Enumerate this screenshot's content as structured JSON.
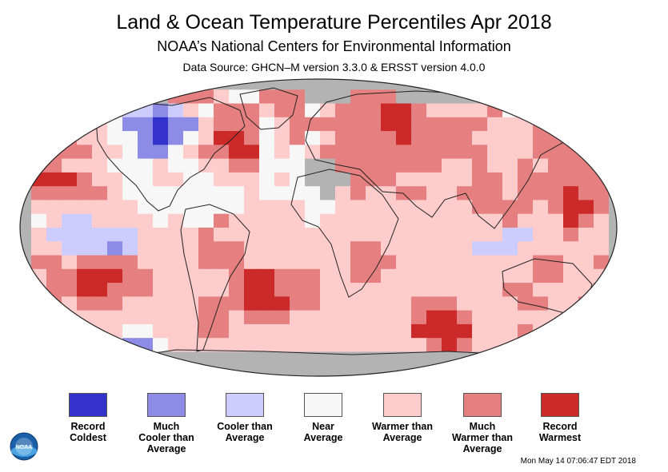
{
  "header": {
    "title": "Land & Ocean Temperature Percentiles Apr 2018",
    "subtitle": "NOAA’s National Centers for Environmental Information",
    "source": "Data Source: GHCN–M version 3.3.0 & ERSST version 4.0.0"
  },
  "legend": [
    {
      "label": "Record\nColdest",
      "color": "#3333cc"
    },
    {
      "label": "Much\nCooler than\nAverage",
      "color": "#8c8ce6"
    },
    {
      "label": "Cooler than\nAverage",
      "color": "#ccccff"
    },
    {
      "label": "Near\nAverage",
      "color": "#f7f7f7"
    },
    {
      "label": "Warmer than\nAverage",
      "color": "#ffcccc"
    },
    {
      "label": "Much\nWarmer than\nAverage",
      "color": "#e68080"
    },
    {
      "label": "Record\nWarmest",
      "color": "#cc2929"
    }
  ],
  "map": {
    "no_data_color": "#b3b3b3",
    "coast_color": "#222222"
  },
  "footer": {
    "timestamp": "Mon May 14 07:06:47 EDT 2018",
    "logo_text": "NOAA"
  }
}
